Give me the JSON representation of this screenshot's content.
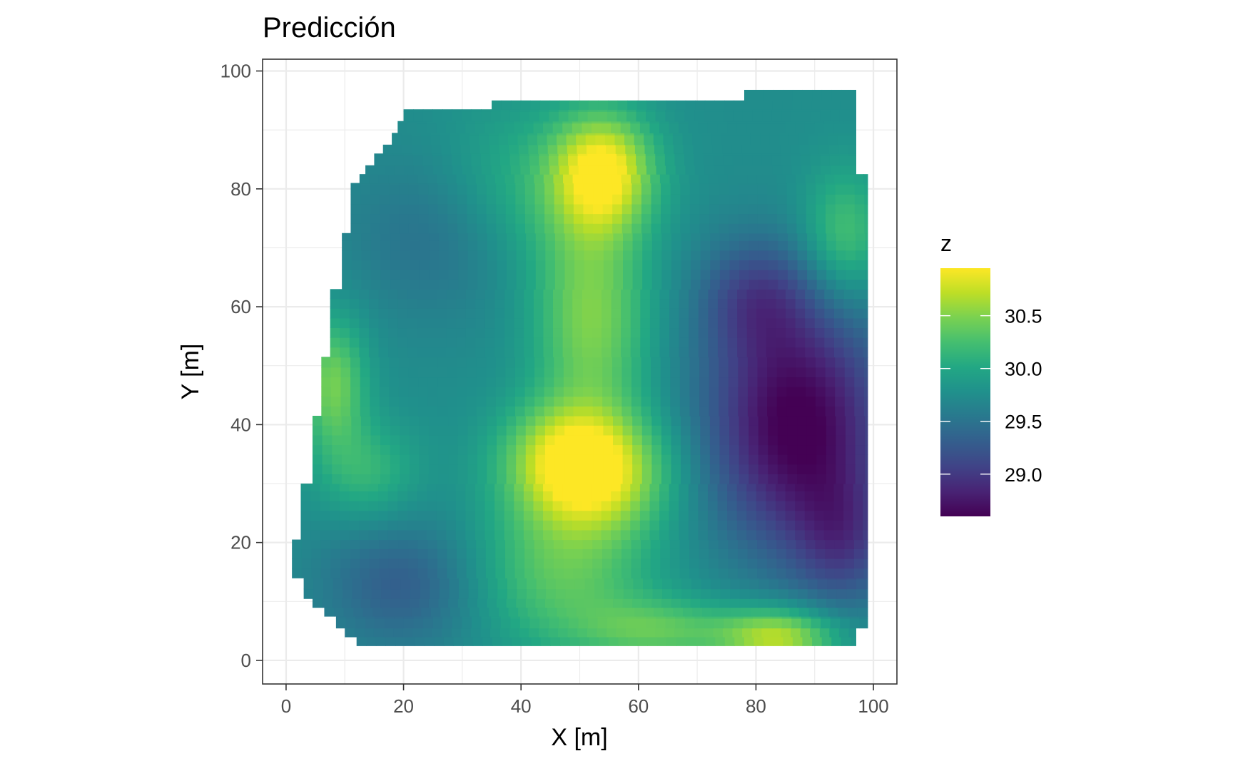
{
  "chart_data": {
    "type": "heatmap",
    "title": "Predicción",
    "xlabel": "X [m]",
    "ylabel": "Y [m]",
    "xlim": [
      -4,
      104
    ],
    "ylim": [
      -4,
      102
    ],
    "x_ticks": [
      0,
      20,
      40,
      60,
      80,
      100
    ],
    "y_ticks": [
      0,
      20,
      40,
      60,
      80,
      100
    ],
    "grid": true,
    "legend": {
      "title": "z",
      "position": "right",
      "palette": "viridis",
      "range": [
        28.6,
        30.95
      ],
      "breaks": [
        29.0,
        29.5,
        30.0,
        30.5
      ],
      "labels": [
        "29.0",
        "29.5",
        "30.0",
        "30.5"
      ]
    },
    "cell_size": 1.65,
    "row_extent": [
      {
        "y_min": 2.5,
        "y_max": 4.0,
        "x_min": 12,
        "x_max": 97
      },
      {
        "y_min": 4.0,
        "y_max": 5.5,
        "x_min": 10,
        "x_max": 97
      },
      {
        "y_min": 5.5,
        "y_max": 7.5,
        "x_min": 8.5,
        "x_max": 99
      },
      {
        "y_min": 7.5,
        "y_max": 9.0,
        "x_min": 6.5,
        "x_max": 99
      },
      {
        "y_min": 9.0,
        "y_max": 10.5,
        "x_min": 4.5,
        "x_max": 99
      },
      {
        "y_min": 10.5,
        "y_max": 14.0,
        "x_min": 3,
        "x_max": 99
      },
      {
        "y_min": 14.0,
        "y_max": 20.5,
        "x_min": 1,
        "x_max": 99
      },
      {
        "y_min": 20.5,
        "y_max": 30.0,
        "x_min": 2.5,
        "x_max": 99
      },
      {
        "y_min": 30.0,
        "y_max": 41.5,
        "x_min": 4.5,
        "x_max": 99
      },
      {
        "y_min": 41.5,
        "y_max": 51.5,
        "x_min": 6,
        "x_max": 99
      },
      {
        "y_min": 51.5,
        "y_max": 63.0,
        "x_min": 7.5,
        "x_max": 99
      },
      {
        "y_min": 63.0,
        "y_max": 72.5,
        "x_min": 9.5,
        "x_max": 99
      },
      {
        "y_min": 72.5,
        "y_max": 81.0,
        "x_min": 11,
        "x_max": 99
      },
      {
        "y_min": 81.0,
        "y_max": 82.5,
        "x_min": 12.5,
        "x_max": 99
      },
      {
        "y_min": 82.5,
        "y_max": 84.0,
        "x_min": 13.5,
        "x_max": 97
      },
      {
        "y_min": 84.0,
        "y_max": 86.0,
        "x_min": 15,
        "x_max": 97
      },
      {
        "y_min": 86.0,
        "y_max": 87.5,
        "x_min": 16.5,
        "x_max": 97
      },
      {
        "y_min": 87.5,
        "y_max": 89.5,
        "x_min": 18,
        "x_max": 97
      },
      {
        "y_min": 89.5,
        "y_max": 91.5,
        "x_min": 19,
        "x_max": 97
      },
      {
        "y_min": 91.5,
        "y_max": 93.5,
        "x_min": 20,
        "x_max": 97
      },
      {
        "y_min": 93.5,
        "y_max": 95.0,
        "x_min": 35,
        "x_max": 97
      },
      {
        "y_min": 95.0,
        "y_max": 96.8,
        "x_min": 78,
        "x_max": 97
      }
    ],
    "surface": {
      "base": 29.75,
      "terms": [
        {
          "x": 54,
          "y": 83,
          "a": 1.15,
          "sx": 6,
          "sy": 7
        },
        {
          "x": 52,
          "y": 32,
          "a": 1.15,
          "sx": 9,
          "sy": 7
        },
        {
          "x": 46,
          "y": 36,
          "a": 0.35,
          "sx": 7,
          "sy": 6
        },
        {
          "x": 52,
          "y": 58,
          "a": 0.75,
          "sx": 7,
          "sy": 14
        },
        {
          "x": 47,
          "y": 15,
          "a": 0.6,
          "sx": 11,
          "sy": 9
        },
        {
          "x": 84,
          "y": 4,
          "a": 0.95,
          "sx": 7,
          "sy": 3.5
        },
        {
          "x": 64,
          "y": 5,
          "a": 0.55,
          "sx": 10,
          "sy": 4
        },
        {
          "x": 95,
          "y": 72,
          "a": 0.55,
          "sx": 5,
          "sy": 8
        },
        {
          "x": 8,
          "y": 47,
          "a": 0.7,
          "sx": 4,
          "sy": 8
        },
        {
          "x": 14,
          "y": 32,
          "a": 0.4,
          "sx": 6,
          "sy": 6
        },
        {
          "x": 40,
          "y": 80,
          "a": 0.35,
          "sx": 10,
          "sy": 10
        },
        {
          "x": 87,
          "y": 40,
          "a": -1.2,
          "sx": 11,
          "sy": 15
        },
        {
          "x": 80,
          "y": 62,
          "a": -0.5,
          "sx": 7,
          "sy": 7
        },
        {
          "x": 95,
          "y": 20,
          "a": -0.5,
          "sx": 6,
          "sy": 8
        },
        {
          "x": 20,
          "y": 13,
          "a": -0.45,
          "sx": 10,
          "sy": 8
        },
        {
          "x": 26,
          "y": 72,
          "a": -0.3,
          "sx": 11,
          "sy": 10
        }
      ]
    }
  }
}
